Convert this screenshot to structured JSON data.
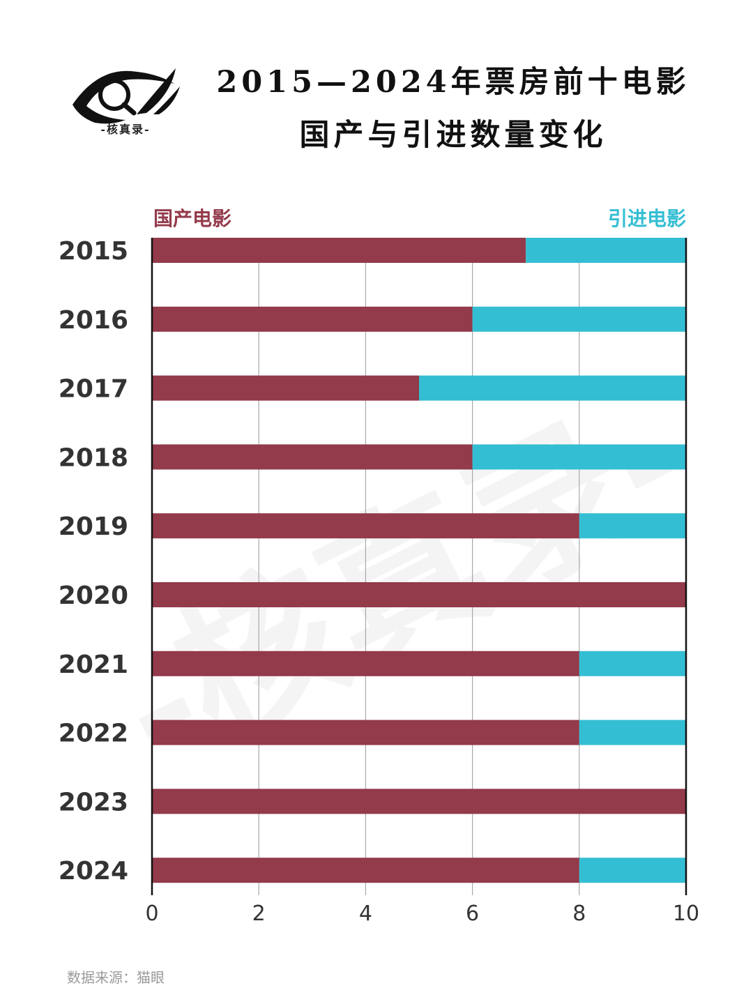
{
  "logo": {
    "text": "-核真录-"
  },
  "title": {
    "line1": "2015—2024年票房前十电影",
    "line2": "国产与引进数量变化"
  },
  "watermark": "-核真录-",
  "source": "数据来源：猫眼",
  "colors": {
    "domestic": "#933a4b",
    "imported": "#34bed3"
  },
  "chart_data": {
    "type": "bar",
    "orientation": "horizontal",
    "stacked": true,
    "categories": [
      "2015",
      "2016",
      "2017",
      "2018",
      "2019",
      "2020",
      "2021",
      "2022",
      "2023",
      "2024"
    ],
    "series": [
      {
        "name": "国产电影",
        "values": [
          7,
          6,
          5,
          6,
          8,
          10,
          8,
          8,
          10,
          8
        ]
      },
      {
        "name": "引进电影",
        "values": [
          3,
          4,
          5,
          4,
          2,
          0,
          2,
          2,
          0,
          2
        ]
      }
    ],
    "xlim": [
      0,
      10
    ],
    "xticks": [
      "0",
      "2",
      "4",
      "6",
      "8",
      "10"
    ],
    "grid": "vertical",
    "legend": "top"
  }
}
